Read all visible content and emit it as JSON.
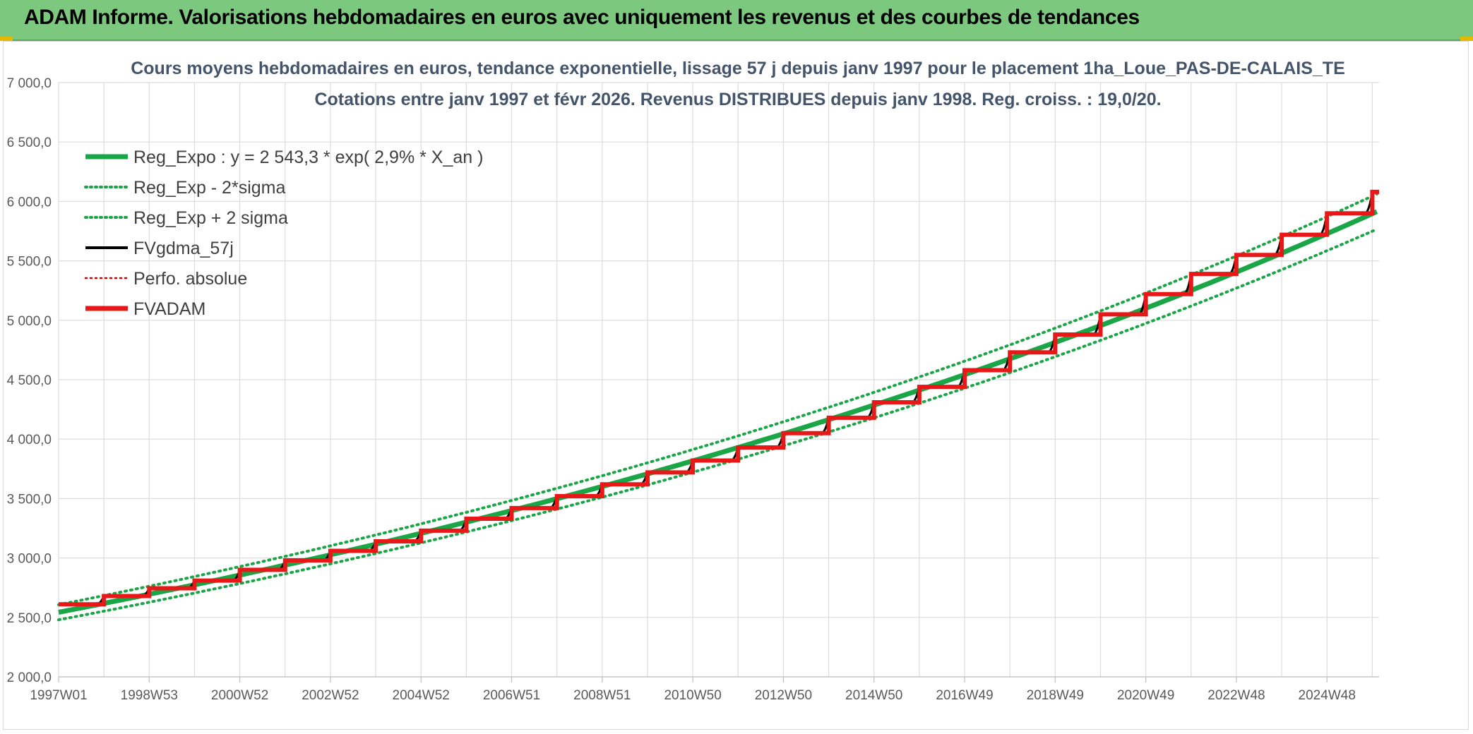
{
  "header": {
    "title": "ADAM Informe. Valorisations hebdomadaires en euros avec uniquement les revenus et des courbes de tendances"
  },
  "colors": {
    "header_bg": "#7dc87f",
    "reg_expo": "#1aa547",
    "fv_gdma": "#000000",
    "fv_adam": "#e81818",
    "perfo": "#cc0000",
    "grid": "#dcdcdc",
    "axis_text": "#595959",
    "title_text": "#44546a"
  },
  "chart_data": {
    "type": "line",
    "title": "Cours moyens hebdomadaires en euros, tendance exponentielle, lissage 57 j depuis janv 1997 pour le placement 1ha_Loue_PAS-DE-CALAIS_TE",
    "subtitle": "Cotations entre janv 1997 et févr 2026. Revenus DISTRIBUES depuis janv 1998. Reg. croiss. : 19,0/20.",
    "xlabel": "",
    "ylabel": "",
    "ylim": [
      2000,
      7000
    ],
    "xlim": [
      1997.0,
      2026.15
    ],
    "yticks": [
      "2 000,0",
      "2 500,0",
      "3 000,0",
      "3 500,0",
      "4 000,0",
      "4 500,0",
      "5 000,0",
      "5 500,0",
      "6 000,0",
      "6 500,0",
      "7 000,0"
    ],
    "ytick_values": [
      2000,
      2500,
      3000,
      3500,
      4000,
      4500,
      5000,
      5500,
      6000,
      6500,
      7000
    ],
    "xticks": [
      "1997W01",
      "1998W53",
      "2000W52",
      "2002W52",
      "2004W52",
      "2006W51",
      "2008W51",
      "2010W50",
      "2012W50",
      "2014W50",
      "2016W49",
      "2018W49",
      "2020W49",
      "2022W48",
      "2024W48"
    ],
    "xtick_values": [
      1997.0,
      1999.0,
      2001.0,
      2003.0,
      2005.0,
      2007.0,
      2009.0,
      2011.0,
      2013.0,
      2015.0,
      2017.0,
      2019.0,
      2021.0,
      2023.0,
      2025.0
    ],
    "grid": true,
    "legend_position": "top-left",
    "legend": [
      {
        "label": "Reg_Expo : y = 2 543,3 * exp( 2,9% *  X_an )",
        "style": "solid-thick",
        "color": "#1aa547"
      },
      {
        "label": "Reg_Exp - 2*sigma",
        "style": "dotted",
        "color": "#1aa547"
      },
      {
        "label": "Reg_Exp + 2 sigma",
        "style": "dotted",
        "color": "#1aa547"
      },
      {
        "label": "FVgdma_57j",
        "style": "solid",
        "color": "#000000"
      },
      {
        "label": "Perfo. absolue",
        "style": "dotted",
        "color": "#cc0000"
      },
      {
        "label": "FVADAM",
        "style": "solid-thick",
        "color": "#e81818"
      }
    ],
    "regression": {
      "a": 2543.3,
      "rate": 0.029,
      "band_factor_low": 0.975,
      "band_factor_high": 1.025
    },
    "fvadam_steps": {
      "x": [
        1997,
        1998,
        1999,
        2000,
        2001,
        2002,
        2003,
        2004,
        2005,
        2006,
        2007,
        2008,
        2009,
        2010,
        2011,
        2012,
        2013,
        2014,
        2015,
        2016,
        2017,
        2018,
        2019,
        2020,
        2021,
        2022,
        2023,
        2024,
        2025,
        2026
      ],
      "values": [
        2610,
        2680,
        2745,
        2810,
        2900,
        2980,
        3060,
        3140,
        3230,
        3330,
        3420,
        3520,
        3620,
        3720,
        3820,
        3930,
        4050,
        4180,
        4310,
        4440,
        4580,
        4730,
        4880,
        5050,
        5220,
        5390,
        5550,
        5720,
        5900,
        6080
      ]
    }
  }
}
